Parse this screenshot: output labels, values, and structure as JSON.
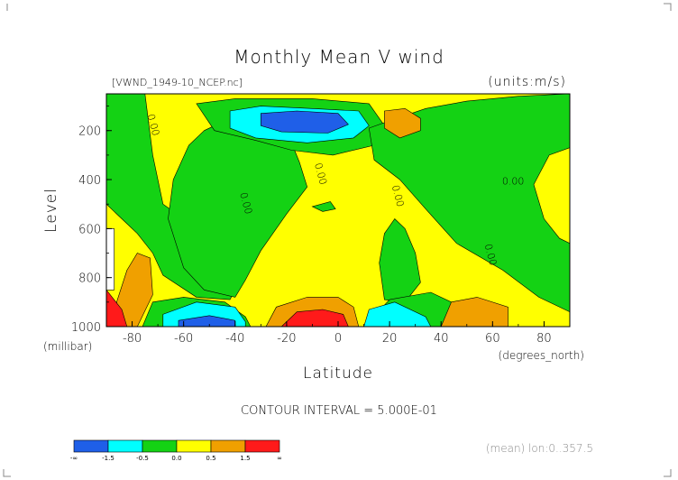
{
  "chart_data": {
    "type": "heatmap",
    "title": "Monthly Mean V wind",
    "file_label": "[VWND_1949-10_NCEP.nc]",
    "units_label": "(units:m/s)",
    "xlabel": "Latitude",
    "xunit": "(degrees_north)",
    "ylabel": "Level",
    "yunit": "(millibar)",
    "xlim": [
      -90,
      90
    ],
    "ylim": [
      1000,
      0
    ],
    "x_ticks": [
      -80,
      -60,
      -40,
      -20,
      0,
      20,
      40,
      60,
      80
    ],
    "x_tick_labels": [
      "-80",
      "-60",
      "-40",
      "-20",
      "0",
      "20",
      "40",
      "60",
      "80"
    ],
    "y_ticks": [
      200,
      400,
      600,
      800,
      1000
    ],
    "y_tick_labels": [
      "200",
      "400",
      "600",
      "800",
      "1000"
    ],
    "contour_interval_text": "CONTOUR INTERVAL = 5.000E-01",
    "footer_note": "(mean) lon:0..357.5",
    "contour_labels": [
      {
        "text": "0.00",
        "lat": -73,
        "lev": 180
      },
      {
        "text": "0.00",
        "lat": -37,
        "lev": 500
      },
      {
        "text": "0.00",
        "lat": -8,
        "lev": 380
      },
      {
        "text": "0.00",
        "lat": 22,
        "lev": 470
      },
      {
        "text": "0.00",
        "lat": 58,
        "lev": 710
      },
      {
        "text": "0.00",
        "lat": 68,
        "lev": 420
      }
    ],
    "levels": [
      -1.5,
      -0.5,
      0.0,
      0.5,
      1.5
    ],
    "colorbar": {
      "colors": [
        "#1f5fe8",
        "#00ffff",
        "#14d214",
        "#ffff00",
        "#f0a000",
        "#ff1a1a"
      ],
      "tick_labels": [
        "-∞",
        "-1.5",
        "-0.5",
        "0.0",
        "0.5",
        "1.5",
        "∞"
      ]
    },
    "background_color": "#ffff00",
    "regions": [
      {
        "level": "positive",
        "color": "#14d214",
        "desc": "westernmost column",
        "points": [
          [
            -90,
            0
          ],
          [
            -75,
            0
          ],
          [
            -72,
            300
          ],
          [
            -68,
            500
          ],
          [
            -60,
            560
          ],
          [
            -54,
            590
          ],
          [
            -48,
            610
          ],
          [
            -45,
            680
          ],
          [
            -42,
            770
          ],
          [
            -40,
            850
          ],
          [
            -42,
            890
          ],
          [
            -55,
            880
          ],
          [
            -68,
            790
          ],
          [
            -72,
            700
          ],
          [
            -78,
            620
          ],
          [
            -84,
            560
          ],
          [
            -90,
            500
          ]
        ]
      },
      {
        "level": "positive",
        "color": "#14d214",
        "desc": "central band",
        "points": [
          [
            -52,
            200
          ],
          [
            -42,
            150
          ],
          [
            -30,
            140
          ],
          [
            -20,
            200
          ],
          [
            -15,
            330
          ],
          [
            -12,
            430
          ],
          [
            -20,
            540
          ],
          [
            -30,
            690
          ],
          [
            -36,
            810
          ],
          [
            -40,
            880
          ],
          [
            -52,
            850
          ],
          [
            -60,
            760
          ],
          [
            -66,
            560
          ],
          [
            -64,
            400
          ],
          [
            -58,
            260
          ]
        ]
      },
      {
        "level": "positive",
        "color": "#14d214",
        "desc": "upper lobe",
        "points": [
          [
            -55,
            90
          ],
          [
            -40,
            70
          ],
          [
            -10,
            70
          ],
          [
            12,
            90
          ],
          [
            18,
            180
          ],
          [
            14,
            260
          ],
          [
            -2,
            300
          ],
          [
            -18,
            280
          ],
          [
            -32,
            240
          ],
          [
            -48,
            200
          ]
        ]
      },
      {
        "level": "positive",
        "color": "#14d214",
        "desc": "northern band",
        "points": [
          [
            12,
            190
          ],
          [
            20,
            160
          ],
          [
            34,
            110
          ],
          [
            50,
            80
          ],
          [
            70,
            60
          ],
          [
            90,
            40
          ],
          [
            90,
            270
          ],
          [
            82,
            300
          ],
          [
            76,
            420
          ],
          [
            80,
            560
          ],
          [
            86,
            640
          ],
          [
            90,
            660
          ],
          [
            90,
            940
          ],
          [
            78,
            880
          ],
          [
            64,
            770
          ],
          [
            46,
            660
          ],
          [
            34,
            520
          ],
          [
            24,
            400
          ],
          [
            14,
            320
          ]
        ]
      },
      {
        "level": "positive",
        "color": "#14d214",
        "desc": "NH tongue",
        "points": [
          [
            22,
            560
          ],
          [
            26,
            600
          ],
          [
            30,
            700
          ],
          [
            32,
            820
          ],
          [
            26,
            900
          ],
          [
            18,
            890
          ],
          [
            16,
            740
          ],
          [
            18,
            620
          ]
        ]
      },
      {
        "level": "positive",
        "color": "#14d214",
        "desc": "NH lower",
        "points": [
          [
            20,
            890
          ],
          [
            36,
            860
          ],
          [
            44,
            900
          ],
          [
            46,
            1000
          ],
          [
            10,
            1000
          ]
        ]
      },
      {
        "level": "positive",
        "color": "#14d214",
        "desc": "SH lower",
        "points": [
          [
            -72,
            900
          ],
          [
            -60,
            880
          ],
          [
            -44,
            900
          ],
          [
            -36,
            960
          ],
          [
            -34,
            1000
          ],
          [
            -76,
            1000
          ]
        ]
      },
      {
        "level": "positive",
        "color": "#14d214",
        "desc": "small blob",
        "points": [
          [
            -3,
            490
          ],
          [
            -1,
            520
          ],
          [
            -6,
            530
          ],
          [
            -10,
            510
          ]
        ]
      },
      {
        "level": "high",
        "color": "#00ffff",
        "desc": "upper cyan",
        "points": [
          [
            -42,
            120
          ],
          [
            -30,
            100
          ],
          [
            -10,
            110
          ],
          [
            8,
            120
          ],
          [
            12,
            180
          ],
          [
            6,
            230
          ],
          [
            -12,
            250
          ],
          [
            -32,
            230
          ],
          [
            -42,
            190
          ]
        ]
      },
      {
        "level": "max",
        "color": "#1f5fe8",
        "desc": "upper blue",
        "points": [
          [
            -30,
            130
          ],
          [
            -16,
            120
          ],
          [
            0,
            130
          ],
          [
            4,
            175
          ],
          [
            -4,
            210
          ],
          [
            -22,
            205
          ],
          [
            -30,
            180
          ]
        ]
      },
      {
        "level": "high",
        "color": "#00ffff",
        "desc": "SH lower cyan",
        "points": [
          [
            -68,
            950
          ],
          [
            -55,
            900
          ],
          [
            -40,
            920
          ],
          [
            -36,
            980
          ],
          [
            -36,
            1000
          ],
          [
            -68,
            1000
          ]
        ]
      },
      {
        "level": "max",
        "color": "#1f5fe8",
        "desc": "SH lower blue",
        "points": [
          [
            -62,
            975
          ],
          [
            -50,
            955
          ],
          [
            -40,
            975
          ],
          [
            -40,
            1000
          ],
          [
            -62,
            1000
          ]
        ]
      },
      {
        "level": "high",
        "color": "#00ffff",
        "desc": "NH lower cyan",
        "points": [
          [
            12,
            930
          ],
          [
            22,
            900
          ],
          [
            34,
            960
          ],
          [
            36,
            1000
          ],
          [
            10,
            1000
          ]
        ]
      },
      {
        "level": "low",
        "color": "#f0a000",
        "desc": "upper orange",
        "points": [
          [
            18,
            120
          ],
          [
            26,
            110
          ],
          [
            32,
            150
          ],
          [
            32,
            200
          ],
          [
            24,
            230
          ],
          [
            18,
            190
          ]
        ]
      },
      {
        "level": "low",
        "color": "#f0a000",
        "desc": "SH orange left",
        "points": [
          [
            -82,
            770
          ],
          [
            -78,
            700
          ],
          [
            -73,
            720
          ],
          [
            -72,
            870
          ],
          [
            -78,
            1000
          ],
          [
            -84,
            1000
          ],
          [
            -86,
            900
          ]
        ]
      },
      {
        "level": "low",
        "color": "#f0a000",
        "desc": "central orange",
        "points": [
          [
            -28,
            1000
          ],
          [
            -24,
            920
          ],
          [
            -12,
            880
          ],
          [
            0,
            880
          ],
          [
            6,
            920
          ],
          [
            8,
            1000
          ]
        ]
      },
      {
        "level": "min",
        "color": "#ff1a1a",
        "desc": "central red",
        "points": [
          [
            -22,
            1000
          ],
          [
            -16,
            940
          ],
          [
            -6,
            930
          ],
          [
            2,
            950
          ],
          [
            4,
            1000
          ]
        ]
      },
      {
        "level": "low",
        "color": "#f0a000",
        "desc": "NH orange",
        "points": [
          [
            40,
            1000
          ],
          [
            44,
            900
          ],
          [
            54,
            880
          ],
          [
            66,
            920
          ],
          [
            66,
            1000
          ]
        ]
      },
      {
        "level": "min",
        "color": "#ff1a1a",
        "desc": "SH red",
        "points": [
          [
            -90,
            850
          ],
          [
            -84,
            930
          ],
          [
            -82,
            1000
          ],
          [
            -90,
            1000
          ]
        ]
      },
      {
        "level": "missing",
        "color": "#ffffff",
        "desc": "blank area",
        "points": [
          [
            -90,
            600
          ],
          [
            -87,
            600
          ],
          [
            -87,
            850
          ],
          [
            -90,
            850
          ]
        ]
      }
    ]
  }
}
